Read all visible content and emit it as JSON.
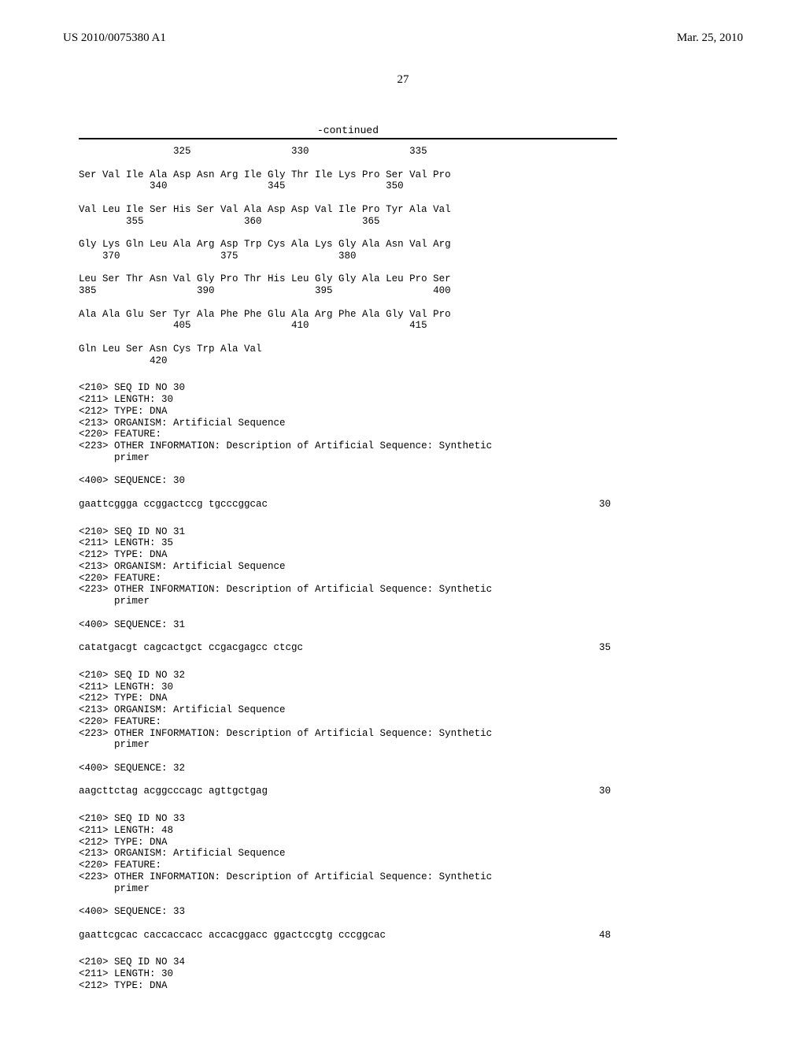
{
  "header": {
    "docnum": "US 2010/0075380 A1",
    "date": "Mar. 25, 2010"
  },
  "page_number": "27",
  "continued_label": "-continued",
  "protein_block": [
    "                325                 330                 335",
    "",
    "Ser Val Ile Ala Asp Asn Arg Ile Gly Thr Ile Lys Pro Ser Val Pro",
    "            340                 345                 350",
    "",
    "Val Leu Ile Ser His Ser Val Ala Asp Asp Val Ile Pro Tyr Ala Val",
    "        355                 360                 365",
    "",
    "Gly Lys Gln Leu Ala Arg Asp Trp Cys Ala Lys Gly Ala Asn Val Arg",
    "    370                 375                 380",
    "",
    "Leu Ser Thr Asn Val Gly Pro Thr His Leu Gly Gly Ala Leu Pro Ser",
    "385                 390                 395                 400",
    "",
    "Ala Ala Glu Ser Tyr Ala Phe Phe Glu Ala Arg Phe Ala Gly Val Pro",
    "                405                 410                 415",
    "",
    "Gln Leu Ser Asn Cys Trp Ala Val",
    "            420"
  ],
  "entries": [
    {
      "meta": [
        "<210> SEQ ID NO 30",
        "<211> LENGTH: 30",
        "<212> TYPE: DNA",
        "<213> ORGANISM: Artificial Sequence",
        "<220> FEATURE:",
        "<223> OTHER INFORMATION: Description of Artificial Sequence: Synthetic",
        "      primer",
        "",
        "<400> SEQUENCE: 30"
      ],
      "sequence": "gaattcggga ccggactccg tgcccggcac",
      "length": "30"
    },
    {
      "meta": [
        "<210> SEQ ID NO 31",
        "<211> LENGTH: 35",
        "<212> TYPE: DNA",
        "<213> ORGANISM: Artificial Sequence",
        "<220> FEATURE:",
        "<223> OTHER INFORMATION: Description of Artificial Sequence: Synthetic",
        "      primer",
        "",
        "<400> SEQUENCE: 31"
      ],
      "sequence": "catatgacgt cagcactgct ccgacgagcc ctcgc",
      "length": "35"
    },
    {
      "meta": [
        "<210> SEQ ID NO 32",
        "<211> LENGTH: 30",
        "<212> TYPE: DNA",
        "<213> ORGANISM: Artificial Sequence",
        "<220> FEATURE:",
        "<223> OTHER INFORMATION: Description of Artificial Sequence: Synthetic",
        "      primer",
        "",
        "<400> SEQUENCE: 32"
      ],
      "sequence": "aagcttctag acggcccagc agttgctgag",
      "length": "30"
    },
    {
      "meta": [
        "<210> SEQ ID NO 33",
        "<211> LENGTH: 48",
        "<212> TYPE: DNA",
        "<213> ORGANISM: Artificial Sequence",
        "<220> FEATURE:",
        "<223> OTHER INFORMATION: Description of Artificial Sequence: Synthetic",
        "      primer",
        "",
        "<400> SEQUENCE: 33"
      ],
      "sequence": "gaattcgcac caccaccacc accacggacc ggactccgtg cccggcac",
      "length": "48"
    },
    {
      "meta": [
        "<210> SEQ ID NO 34",
        "<211> LENGTH: 30",
        "<212> TYPE: DNA"
      ],
      "sequence": null,
      "length": null
    }
  ]
}
